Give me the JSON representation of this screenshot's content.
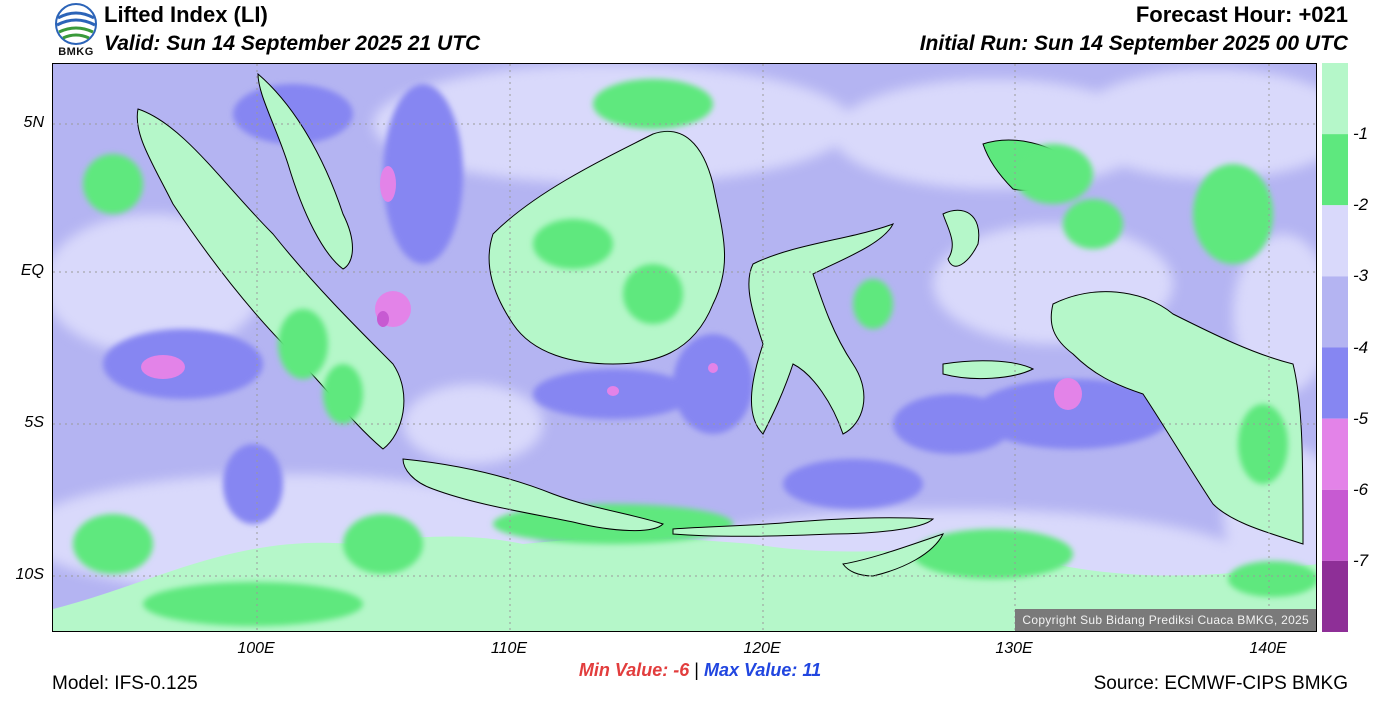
{
  "header": {
    "title": "Lifted Index (LI)",
    "valid": "Valid: Sun 14 September 2025 21 UTC",
    "forecast_hour": "Forecast Hour: +021",
    "initial_run": "Initial Run: Sun 14 September 2025 00 UTC",
    "logo_text": "BMKG"
  },
  "axes": {
    "y_ticks": [
      "5N",
      "EQ",
      "5S",
      "10S"
    ],
    "x_ticks": [
      "100E",
      "110E",
      "120E",
      "130E",
      "140E"
    ]
  },
  "legend": {
    "labels": [
      "-1",
      "-2",
      "-3",
      "-4",
      "-5",
      "-6",
      "-7"
    ],
    "colors": [
      "#b5f7c9",
      "#5ee87e",
      "#d9d9fb",
      "#b4b4f2",
      "#8686f2",
      "#e383e8",
      "#c75ad2",
      "#8e2f97"
    ]
  },
  "stats": {
    "min_label": "Min Value:",
    "min_value": "-6",
    "separator": "|",
    "max_label": "Max Value:",
    "max_value": "11"
  },
  "footer": {
    "model": "Model: IFS-0.125",
    "source": "Source: ECMWF-CIPS BMKG",
    "copyright": "Copyright Sub Bidang Prediksi Cuaca BMKG, 2025"
  },
  "colors": {
    "sea_weak": "#d9d9fb",
    "sea_base": "#b4b4f2",
    "sea_moderate": "#8686f2",
    "land_light_green": "#b5f7c9",
    "land_green": "#5ee87e",
    "unstable_pink": "#e383e8"
  }
}
